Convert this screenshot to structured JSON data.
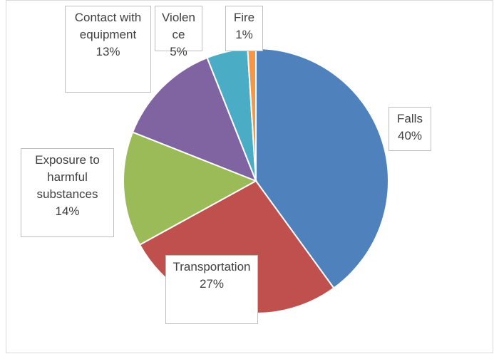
{
  "chart_data": {
    "type": "pie",
    "categories": [
      "Falls",
      "Transportation",
      "Exposure to harmful substances",
      "Contact with equipment",
      "Violence",
      "Fire"
    ],
    "values": [
      40,
      27,
      14,
      13,
      5,
      1
    ],
    "value_labels": [
      "40%",
      "27%",
      "14%",
      "13%",
      "5%",
      "1%"
    ],
    "colors": [
      "#4f81bd",
      "#c0504d",
      "#9bbb59",
      "#8064a2",
      "#4bacc6",
      "#f79646"
    ]
  }
}
